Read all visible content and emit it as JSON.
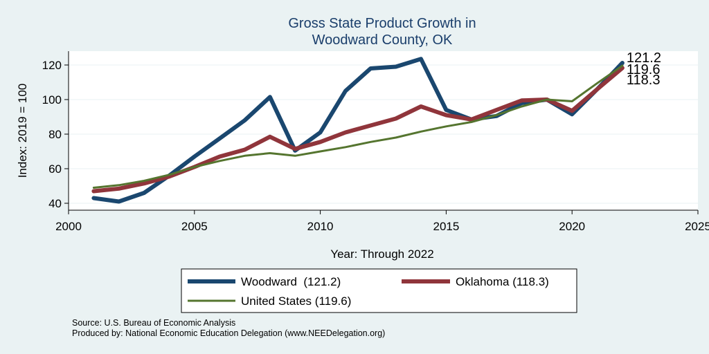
{
  "chart_data": {
    "type": "line",
    "title_lines": [
      "Gross State Product Growth in",
      "Woodward County, OK"
    ],
    "xlabel": "Year: Through 2022",
    "ylabel": "Index: 2019 = 100",
    "xlim": [
      2000,
      2025
    ],
    "ylim": [
      36,
      128
    ],
    "x_ticks": [
      2000,
      2005,
      2010,
      2015,
      2020,
      2025
    ],
    "y_ticks": [
      40,
      60,
      80,
      100,
      120
    ],
    "grid": true,
    "x": [
      2001,
      2002,
      2003,
      2004,
      2005,
      2006,
      2007,
      2008,
      2009,
      2010,
      2011,
      2012,
      2013,
      2014,
      2015,
      2016,
      2017,
      2018,
      2019,
      2020,
      2021,
      2022
    ],
    "series": [
      {
        "name": "Woodward",
        "legend_label": "Woodward  (121.2)",
        "end_label": "121.2",
        "color": "#1a476f",
        "values": [
          43,
          41,
          46,
          56,
          67,
          77.5,
          88,
          101.5,
          70.5,
          81,
          105,
          118,
          119,
          123.5,
          94,
          88.5,
          90.5,
          98,
          100,
          91.5,
          106,
          121.2
        ]
      },
      {
        "name": "Oklahoma",
        "legend_label": "Oklahoma (118.3)",
        "end_label": "118.3",
        "color": "#90353b",
        "values": [
          47,
          48.5,
          51.5,
          55.5,
          61,
          67,
          71,
          78.5,
          71.5,
          75.5,
          81,
          85,
          89,
          96,
          91,
          88.5,
          94,
          99.5,
          100,
          93.5,
          106,
          118.3
        ]
      },
      {
        "name": "United States",
        "legend_label": "United States (119.6)",
        "end_label": "119.6",
        "color": "#55752f",
        "values": [
          49,
          50.5,
          53,
          56.5,
          61,
          64.5,
          67.5,
          69,
          67.5,
          70,
          72.5,
          75.5,
          78,
          81.5,
          84.5,
          87,
          91,
          96,
          100,
          99,
          109.5,
          119.6
        ]
      }
    ]
  },
  "notes": {
    "source": "Source: U.S. Bureau of Economic Analysis",
    "produced": "Produced by: National Economic Education Delegation (www.NEEDelegation.org)"
  }
}
